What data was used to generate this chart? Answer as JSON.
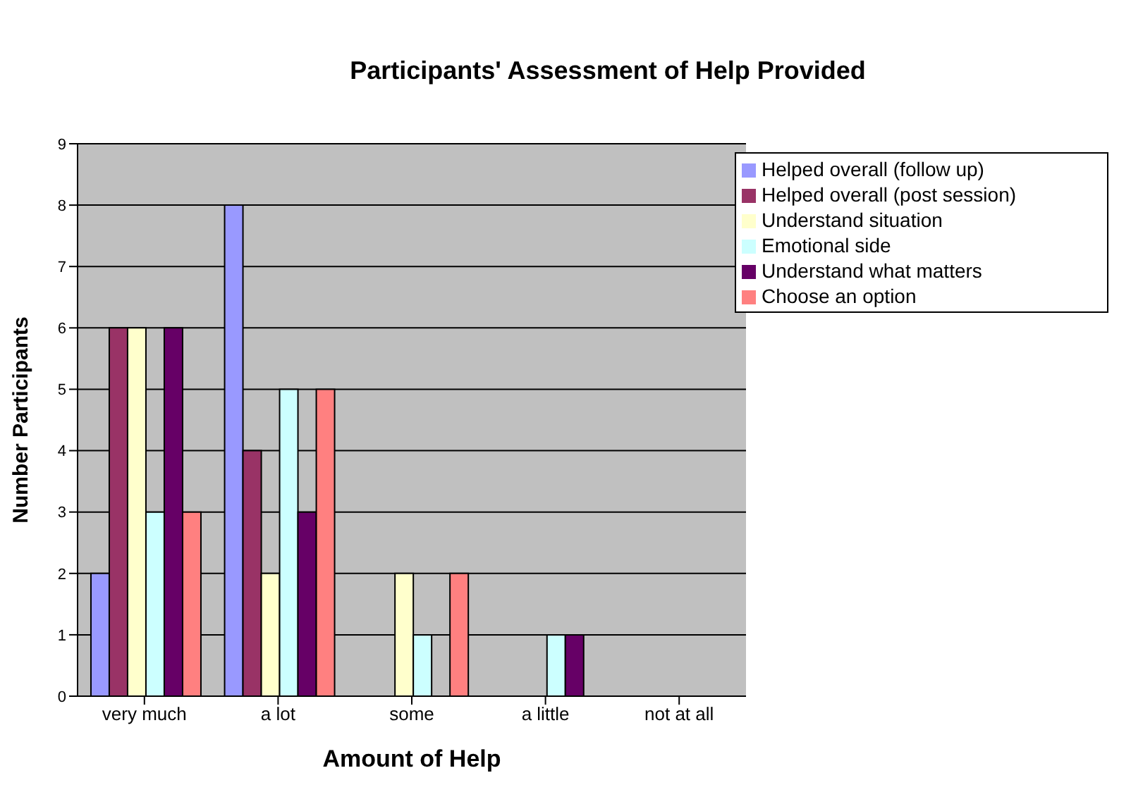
{
  "chart_data": {
    "type": "bar",
    "title": "Participants' Assessment of Help Provided",
    "xlabel": "Amount of Help",
    "ylabel": "Number Participants",
    "categories": [
      "very much",
      "a lot",
      "some",
      "a little",
      "not at all"
    ],
    "series": [
      {
        "name": "Helped overall (follow up)",
        "color": "#9999ff",
        "values": [
          2,
          8,
          0,
          0,
          0
        ]
      },
      {
        "name": "Helped overall (post session)",
        "color": "#993366",
        "values": [
          6,
          4,
          0,
          0,
          0
        ]
      },
      {
        "name": "Understand situation",
        "color": "#ffffcc",
        "values": [
          6,
          2,
          2,
          0,
          0
        ]
      },
      {
        "name": "Emotional side",
        "color": "#ccffff",
        "values": [
          3,
          5,
          1,
          1,
          0
        ]
      },
      {
        "name": "Understand what matters",
        "color": "#660066",
        "values": [
          6,
          3,
          0,
          1,
          0
        ]
      },
      {
        "name": "Choose an option",
        "color": "#ff8080",
        "values": [
          3,
          5,
          2,
          0,
          0
        ]
      }
    ],
    "ylim": [
      0,
      9
    ],
    "yticks": [
      0,
      1,
      2,
      3,
      4,
      5,
      6,
      7,
      8,
      9
    ],
    "grid": "y",
    "legend": "top right"
  }
}
